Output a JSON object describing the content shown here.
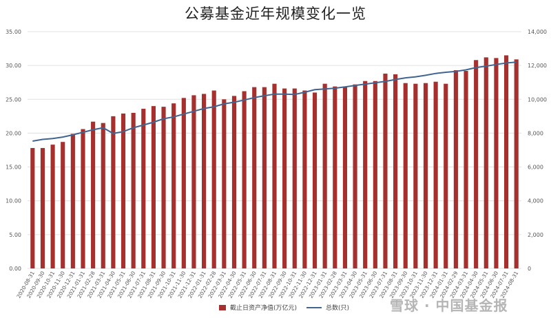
{
  "title": "公募基金近年规模变化一览",
  "legend": {
    "bar_label": "截止日资产净值(万亿元)",
    "line_label": "总数(只)"
  },
  "watermark": "雪球 · 中国基金报",
  "colors": {
    "bar": "#a6302e",
    "line": "#3f6490",
    "grid": "#e0e0e0",
    "axis_text": "#555555"
  },
  "chart_data": {
    "type": "bar+line",
    "title": "公募基金近年规模变化一览",
    "xlabel": "",
    "ylabel_left": "截止日资产净值(万亿元)",
    "ylabel_right": "总数(只)",
    "ylim_left": [
      0,
      35
    ],
    "ylim_right": [
      0,
      14000
    ],
    "yticks_left": [
      "0.00",
      "5.00",
      "10.00",
      "15.00",
      "20.00",
      "25.00",
      "30.00",
      "35.00"
    ],
    "yticks_right": [
      "0",
      "2,000",
      "4,000",
      "6,000",
      "8,000",
      "10,000",
      "12,000",
      "14,000"
    ],
    "grid": true,
    "legend_position": "bottom",
    "categories": [
      "2020-08-31",
      "2020-09-30",
      "2020-10-31",
      "2020-11-30",
      "2020-12-31",
      "2021-01-31",
      "2021-02-28",
      "2021-03-31",
      "2021-04-30",
      "2021-05-31",
      "2021-06-30",
      "2021-07-31",
      "2021-08-31",
      "2021-09-30",
      "2021-10-31",
      "2021-11-30",
      "2021-12-31",
      "2022-01-31",
      "2022-02-28",
      "2022-03-31",
      "2022-04-30",
      "2022-05-31",
      "2022-06-30",
      "2022-07-31",
      "2022-08-31",
      "2022-09-30",
      "2022-10-31",
      "2022-11-30",
      "2022-12-31",
      "2023-01-31",
      "2023-02-28",
      "2023-03-31",
      "2023-04-30",
      "2023-05-31",
      "2023-06-30",
      "2023-07-31",
      "2023-08-31",
      "2023-09-30",
      "2023-10-31",
      "2023-11-30",
      "2023-12-31",
      "2024-01-31",
      "2024-02-29",
      "2024-03-31",
      "2024-04-30",
      "2024-05-31",
      "2024-06-30",
      "2024-07-31",
      "2024-08-31"
    ],
    "series": [
      {
        "name": "截止日资产净值(万亿元)",
        "type": "bar",
        "axis": "left",
        "values": [
          17.8,
          17.8,
          18.3,
          18.7,
          19.9,
          20.6,
          21.7,
          21.5,
          22.5,
          22.9,
          23.0,
          23.6,
          24.0,
          23.9,
          24.4,
          25.2,
          25.6,
          25.8,
          26.3,
          25.0,
          25.5,
          26.2,
          26.8,
          26.8,
          27.3,
          26.6,
          26.6,
          26.3,
          26.0,
          27.3,
          26.9,
          26.9,
          27.2,
          27.7,
          27.7,
          28.8,
          28.7,
          27.4,
          27.3,
          27.4,
          27.6,
          27.3,
          29.3,
          29.2,
          30.8,
          31.2,
          31.1,
          31.5,
          30.9
        ]
      },
      {
        "name": "总数(只)",
        "type": "line",
        "axis": "right",
        "values": [
          7530,
          7630,
          7680,
          7770,
          7900,
          8050,
          8200,
          8320,
          7980,
          8090,
          8320,
          8480,
          8650,
          8850,
          8960,
          9130,
          9290,
          9460,
          9560,
          9730,
          9830,
          9960,
          10100,
          10210,
          10310,
          10310,
          10290,
          10420,
          10570,
          10610,
          10660,
          10730,
          10820,
          10900,
          10980,
          11060,
          11170,
          11270,
          11330,
          11420,
          11530,
          11600,
          11650,
          11740,
          11880,
          11960,
          12060,
          12150,
          12200
        ]
      }
    ]
  }
}
